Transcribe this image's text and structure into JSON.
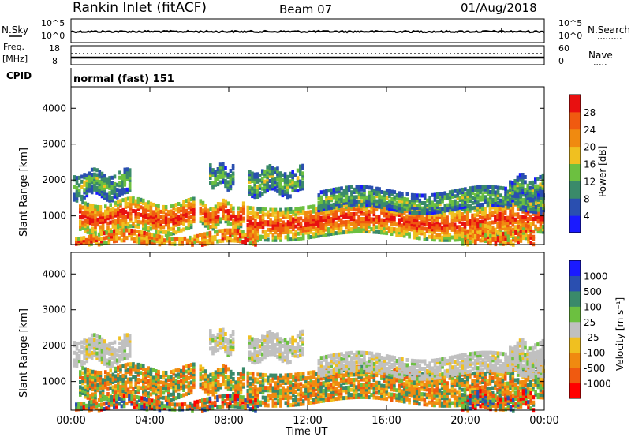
{
  "header": {
    "title": "Rankin Inlet (fitACF)",
    "beam": "Beam 07",
    "date": "01/Aug/2018"
  },
  "nsky_panel": {
    "left_label": "N.Sky",
    "left_ticks": [
      "10^5",
      "10^0"
    ],
    "right_label": "N.Search",
    "right_ticks": [
      "10^5",
      "10^0"
    ]
  },
  "freq_panel": {
    "left_label_1": "Freq.",
    "left_label_2": "[MHz]",
    "left_ticks": [
      "18",
      "8"
    ],
    "right_label": "Nave",
    "right_ticks": [
      "60",
      "0"
    ]
  },
  "cpid": {
    "label": "CPID",
    "value": "normal (fast) 151"
  },
  "colors": {
    "power": [
      "#1a1aff",
      "#2a4fb0",
      "#3a8a6a",
      "#6cc040",
      "#f0c020",
      "#f08a10",
      "#f05a10",
      "#e81010"
    ],
    "velocity": [
      "#ff0000",
      "#f05a10",
      "#f08a10",
      "#f0c020",
      "#c0c0c0",
      "#6cc040",
      "#3a8a6a",
      "#2a4fb0",
      "#1a1aff"
    ]
  },
  "chart_data": [
    {
      "type": "heatmap",
      "name": "power",
      "ylabel": "Slant Range [km]",
      "yticks": [
        "1000",
        "2000",
        "3000",
        "4000"
      ],
      "ylim": [
        200,
        4600
      ],
      "xlim": [
        0,
        24
      ],
      "colorbar_label": "Power [dB]",
      "colorbar_ticks": [
        "4",
        "8",
        "12",
        "16",
        "20",
        "24",
        "28"
      ],
      "colorbar_range": [
        0,
        30
      ]
    },
    {
      "type": "heatmap",
      "name": "velocity",
      "xlabel": "Time UT",
      "xticks": [
        "00:00",
        "04:00",
        "08:00",
        "12:00",
        "16:00",
        "20:00",
        "00:00"
      ],
      "ylabel": "Slant Range [km]",
      "yticks": [
        "1000",
        "2000",
        "3000",
        "4000"
      ],
      "ylim": [
        200,
        4600
      ],
      "xlim": [
        0,
        24
      ],
      "colorbar_label": "Velocity [m s⁻¹]",
      "colorbar_ticks": [
        "-1000",
        "-500",
        "-100",
        "-25",
        "25",
        "100",
        "500",
        "1000"
      ]
    }
  ]
}
